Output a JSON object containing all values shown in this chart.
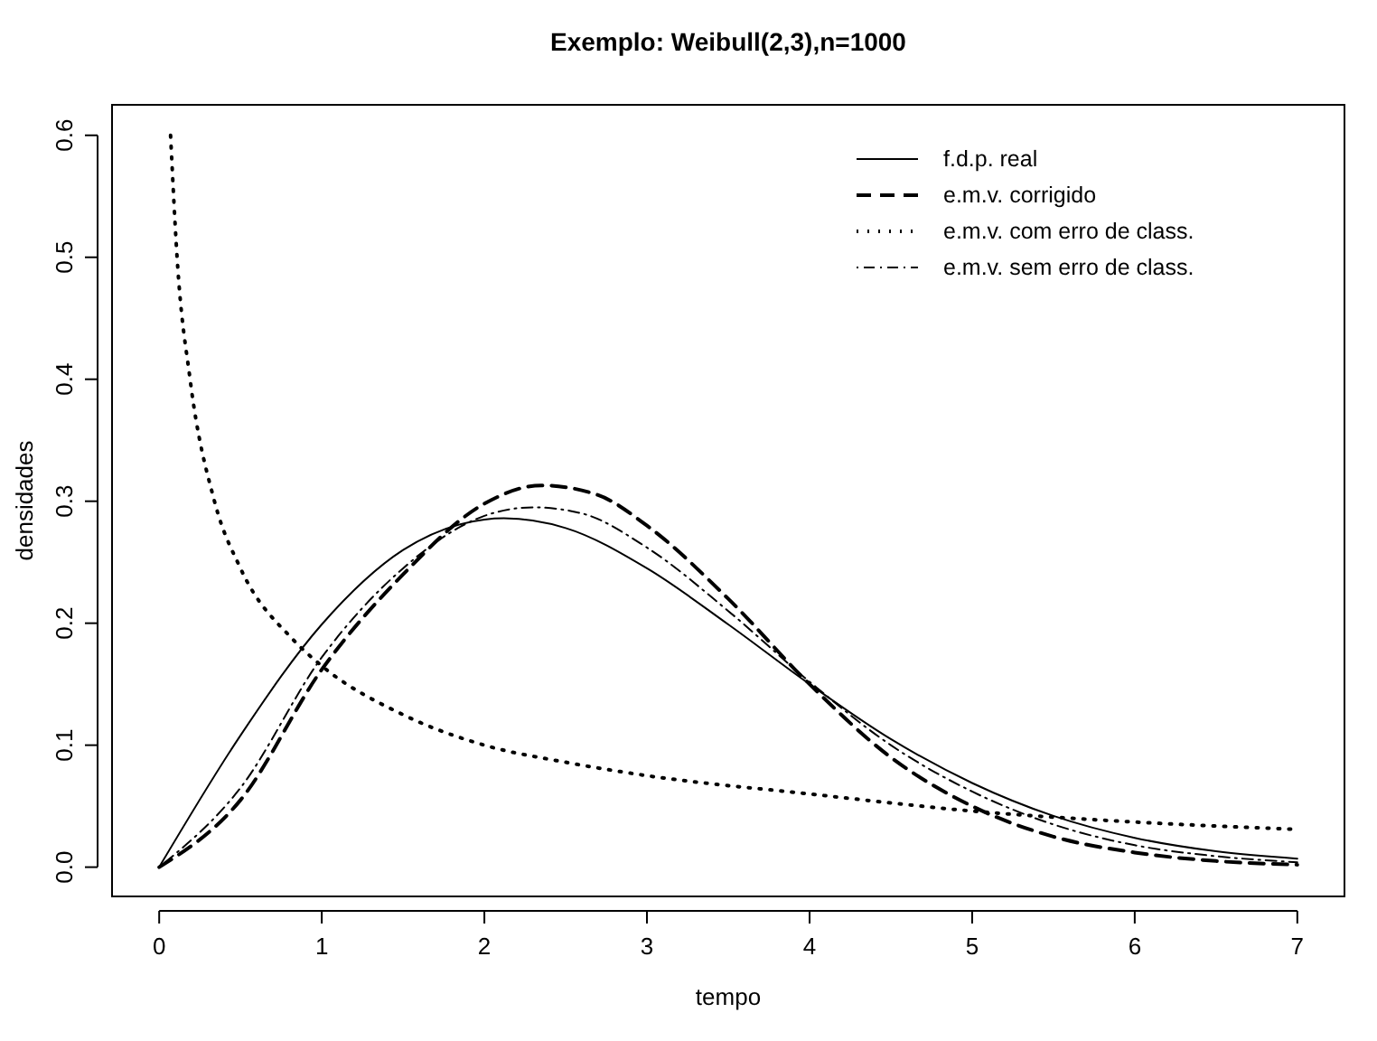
{
  "chart_data": {
    "type": "line",
    "title": "Exemplo: Weibull(2,3),n=1000",
    "xlabel": "tempo",
    "ylabel": "densidades",
    "xlim": [
      -0.29,
      7.29
    ],
    "ylim": [
      -0.024,
      0.625
    ],
    "xticks": [
      0,
      1,
      2,
      3,
      4,
      5,
      6,
      7
    ],
    "yticks": [
      {
        "value": 0,
        "label": "0.0"
      },
      0.1,
      0.2,
      0.3,
      0.4,
      0.5,
      0.6
    ],
    "grid": false,
    "legend": "top right",
    "marker": "none",
    "series": [
      {
        "name": "f.d.p. real",
        "color": "#000000",
        "line_style": "solid",
        "x": [
          0,
          0.5,
          1,
          1.5,
          2,
          2.12,
          2.5,
          3,
          3.5,
          4,
          4.5,
          5,
          5.5,
          6,
          6.5,
          7
        ],
        "values": [
          0,
          0.108,
          0.199,
          0.26,
          0.285,
          0.286,
          0.278,
          0.245,
          0.199,
          0.15,
          0.105,
          0.069,
          0.042,
          0.024,
          0.013,
          0.007
        ]
      },
      {
        "name": "e.m.v. corrigido",
        "color": "#000000",
        "line_style": "dashed",
        "x": [
          0,
          0.5,
          1,
          1.5,
          2,
          2.35,
          2.7,
          3,
          3.5,
          4,
          4.5,
          5,
          5.5,
          6,
          6.5,
          7
        ],
        "values": [
          0,
          0.055,
          0.162,
          0.24,
          0.298,
          0.313,
          0.305,
          0.28,
          0.22,
          0.15,
          0.09,
          0.05,
          0.025,
          0.012,
          0.005,
          0.002
        ]
      },
      {
        "name": "e.m.v. com erro de class.",
        "color": "#000000",
        "line_style": "dotted",
        "x": [
          0.07,
          0.11,
          0.19,
          0.34,
          0.5,
          0.82,
          1,
          1.5,
          2,
          2.5,
          3,
          4,
          5,
          6,
          7
        ],
        "values": [
          0.6,
          0.5,
          0.4,
          0.3,
          0.245,
          0.187,
          0.165,
          0.125,
          0.1,
          0.086,
          0.075,
          0.06,
          0.046,
          0.037,
          0.031
        ]
      },
      {
        "name": "e.m.v. sem erro de class.",
        "color": "#000000",
        "line_style": "dashdot",
        "x": [
          0,
          0.5,
          1,
          1.5,
          2,
          2.3,
          2.6,
          3,
          3.5,
          4,
          4.5,
          5,
          5.5,
          6,
          6.5,
          7
        ],
        "values": [
          0,
          0.065,
          0.172,
          0.245,
          0.288,
          0.295,
          0.29,
          0.262,
          0.21,
          0.152,
          0.1,
          0.062,
          0.035,
          0.018,
          0.009,
          0.004
        ]
      }
    ]
  }
}
